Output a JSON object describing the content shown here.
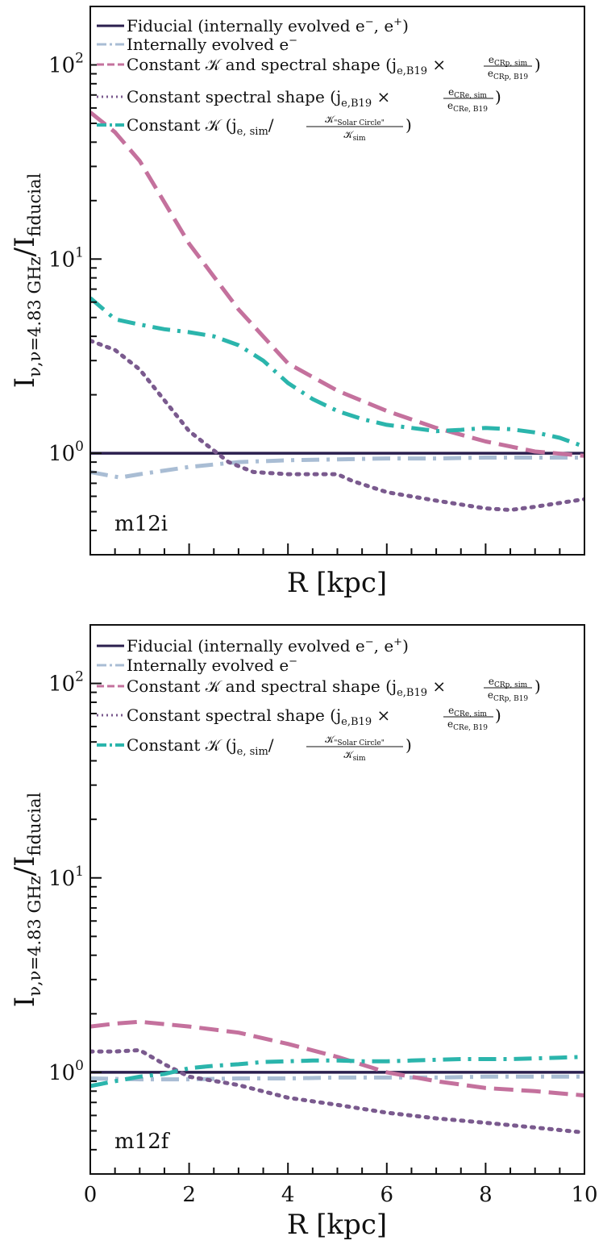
{
  "chart_data": [
    {
      "type": "line",
      "panel_label": "m12i",
      "xlabel": "R [kpc]",
      "ylabel": "I_{ν,ν=4.83 GHz}/I_fiducial",
      "xlim": [
        0,
        10
      ],
      "ylim": [
        0.3,
        200
      ],
      "yscale": "log",
      "x_tick_labels_shown": false,
      "y_tick_labels": [
        "10^0",
        "10^1",
        "10^2"
      ],
      "legend_position": "top-left",
      "series": [
        {
          "name": "Fiducial (internally evolved e−, e+)",
          "color": "#2b1f4e",
          "style": "solid",
          "x": [
            0,
            10
          ],
          "y": [
            1.0,
            1.0
          ]
        },
        {
          "name": "Internally evolved e−",
          "color": "#a9bdd4",
          "style": "dashdot",
          "x": [
            0,
            0.6,
            1,
            2,
            3,
            4,
            5,
            6,
            7,
            8,
            9,
            10
          ],
          "y": [
            0.8,
            0.75,
            0.78,
            0.85,
            0.9,
            0.92,
            0.93,
            0.94,
            0.94,
            0.95,
            0.95,
            0.95
          ]
        },
        {
          "name": "Constant K and spectral shape",
          "color": "#c4719d",
          "style": "dashed",
          "x": [
            0,
            0.5,
            1,
            2,
            3,
            4,
            5,
            6,
            7,
            8,
            9,
            10
          ],
          "y": [
            57,
            45,
            32,
            12,
            5.5,
            2.9,
            2.1,
            1.65,
            1.35,
            1.15,
            1.02,
            0.97
          ]
        },
        {
          "name": "Constant spectral shape",
          "color": "#7a5a8e",
          "style": "dotted",
          "x": [
            0,
            0.5,
            1,
            2,
            2.8,
            3.3,
            4,
            5,
            5.3,
            6,
            7,
            8,
            8.5,
            9,
            10
          ],
          "y": [
            3.8,
            3.4,
            2.7,
            1.3,
            0.9,
            0.8,
            0.78,
            0.78,
            0.72,
            0.63,
            0.57,
            0.52,
            0.51,
            0.53,
            0.58
          ]
        },
        {
          "name": "Constant K",
          "color": "#2bb5ac",
          "style": "dashdot",
          "x": [
            0,
            0.5,
            1,
            1.5,
            2,
            2.5,
            3,
            3.5,
            4,
            4.5,
            5,
            5.5,
            6,
            6.5,
            7,
            7.5,
            8,
            8.5,
            9,
            9.5,
            10
          ],
          "y": [
            6.3,
            4.9,
            4.6,
            4.35,
            4.2,
            4.0,
            3.6,
            3.0,
            2.3,
            1.9,
            1.65,
            1.5,
            1.4,
            1.35,
            1.3,
            1.32,
            1.35,
            1.33,
            1.28,
            1.2,
            1.08
          ]
        }
      ]
    },
    {
      "type": "line",
      "panel_label": "m12f",
      "xlabel": "R [kpc]",
      "ylabel": "I_{ν,ν=4.83 GHz}/I_fiducial",
      "xlim": [
        0,
        10
      ],
      "ylim": [
        0.3,
        200
      ],
      "yscale": "log",
      "x_tick_labels": [
        "0",
        "2",
        "4",
        "6",
        "8",
        "10"
      ],
      "y_tick_labels": [
        "10^0",
        "10^1",
        "10^2"
      ],
      "legend_position": "top-left",
      "series": [
        {
          "name": "Fiducial (internally evolved e−, e+)",
          "color": "#2b1f4e",
          "style": "solid",
          "x": [
            0,
            10
          ],
          "y": [
            1.0,
            1.0
          ]
        },
        {
          "name": "Internally evolved e−",
          "color": "#a9bdd4",
          "style": "dashdot",
          "x": [
            0,
            1,
            2,
            3,
            4,
            5,
            6,
            7,
            8,
            9,
            10
          ],
          "y": [
            0.93,
            0.92,
            0.92,
            0.93,
            0.93,
            0.94,
            0.94,
            0.94,
            0.95,
            0.95,
            0.95
          ]
        },
        {
          "name": "Constant K and spectral shape",
          "color": "#c4719d",
          "style": "dashed",
          "x": [
            0,
            0.5,
            1,
            2,
            3,
            4,
            5,
            6,
            7,
            8,
            9,
            10
          ],
          "y": [
            1.72,
            1.78,
            1.82,
            1.72,
            1.6,
            1.4,
            1.2,
            1.0,
            0.9,
            0.83,
            0.8,
            0.76
          ]
        },
        {
          "name": "Constant spectral shape",
          "color": "#7a5a8e",
          "style": "dotted",
          "x": [
            0,
            0.5,
            1,
            1.5,
            2,
            3,
            4,
            5,
            6,
            7,
            8,
            9,
            10
          ],
          "y": [
            1.28,
            1.28,
            1.3,
            1.1,
            0.95,
            0.86,
            0.74,
            0.68,
            0.62,
            0.58,
            0.55,
            0.52,
            0.49
          ]
        },
        {
          "name": "Constant K",
          "color": "#2bb5ac",
          "style": "dashdot",
          "x": [
            0,
            0.5,
            1,
            1.5,
            2,
            2.5,
            3,
            3.5,
            4,
            4.5,
            5,
            5.5,
            6,
            6.5,
            7,
            7.5,
            8,
            8.5,
            9,
            9.5,
            10
          ],
          "y": [
            0.85,
            0.9,
            0.95,
            0.98,
            1.05,
            1.08,
            1.1,
            1.13,
            1.14,
            1.15,
            1.15,
            1.14,
            1.14,
            1.15,
            1.16,
            1.17,
            1.17,
            1.17,
            1.18,
            1.19,
            1.2
          ]
        }
      ]
    }
  ]
}
